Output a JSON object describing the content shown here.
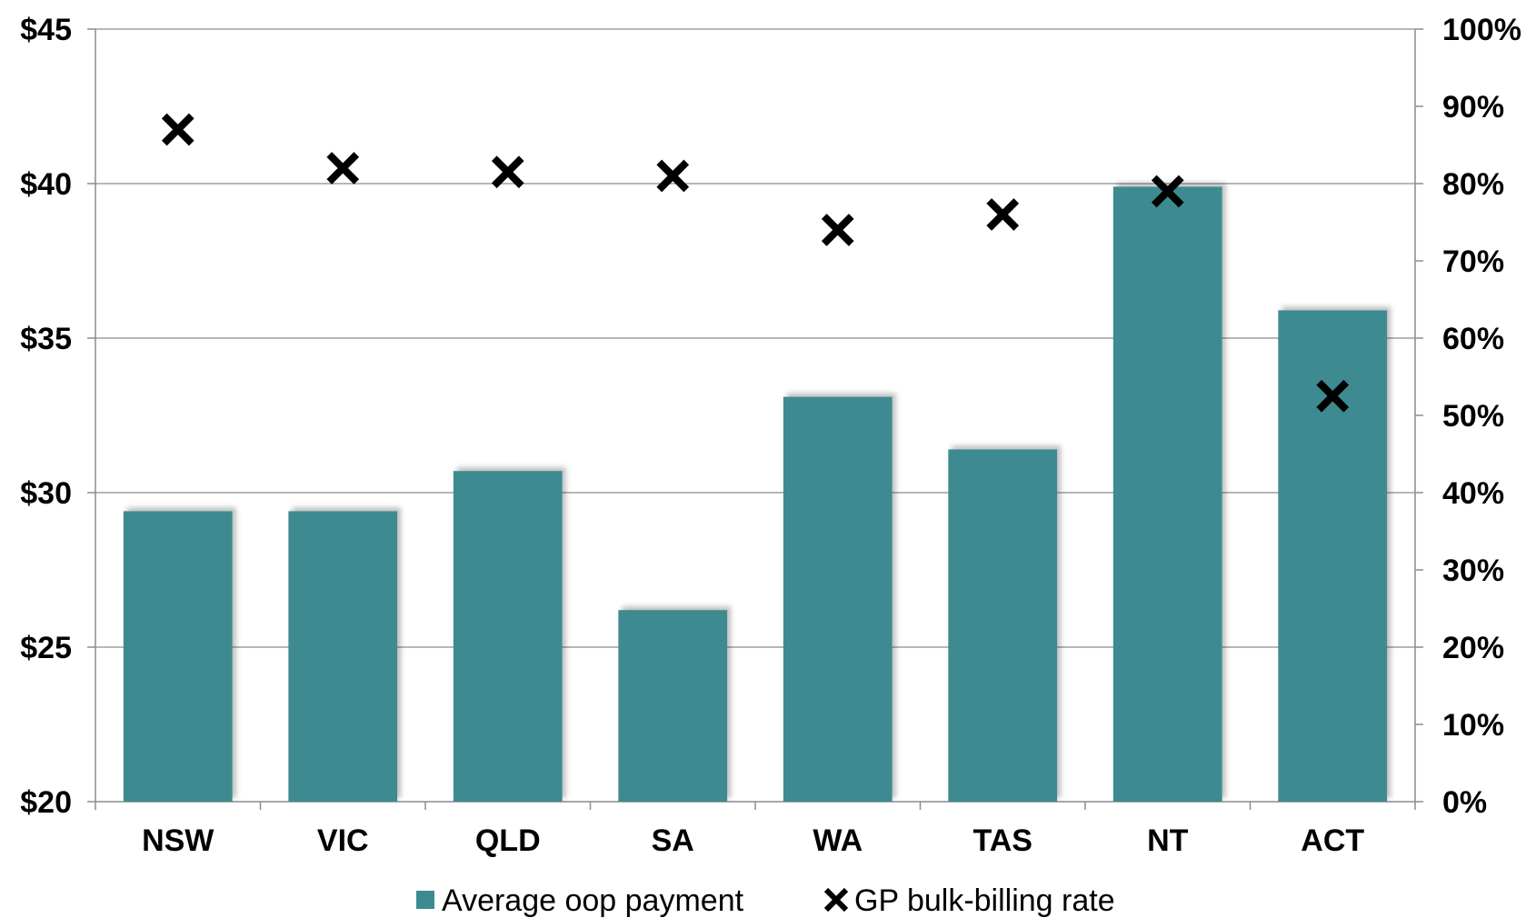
{
  "chart_data": {
    "type": "bar",
    "title": "",
    "xlabel": "",
    "ylabel": "",
    "categories": [
      "NSW",
      "VIC",
      "QLD",
      "SA",
      "WA",
      "TAS",
      "NT",
      "ACT"
    ],
    "series": [
      {
        "name": "Average oop payment",
        "type": "bar",
        "axis": "left",
        "color": "#3d8b91",
        "values": [
          29.4,
          29.4,
          30.7,
          26.2,
          33.1,
          31.4,
          39.9,
          35.9
        ]
      },
      {
        "name": "GP bulk-billing rate",
        "type": "scatter",
        "axis": "right",
        "marker": "x",
        "color": "#000000",
        "values": [
          87,
          82,
          81.5,
          81,
          74,
          76,
          79,
          52.5
        ]
      }
    ],
    "y_left": {
      "min": 20,
      "max": 45,
      "step": 5,
      "ticks": [
        "$20",
        "$25",
        "$30",
        "$35",
        "$40",
        "$45"
      ]
    },
    "y_right": {
      "min": 0,
      "max": 100,
      "step": 10,
      "ticks": [
        "0%",
        "10%",
        "20%",
        "30%",
        "40%",
        "50%",
        "60%",
        "70%",
        "80%",
        "90%",
        "100%"
      ]
    },
    "grid": true,
    "legend": "bottom"
  }
}
